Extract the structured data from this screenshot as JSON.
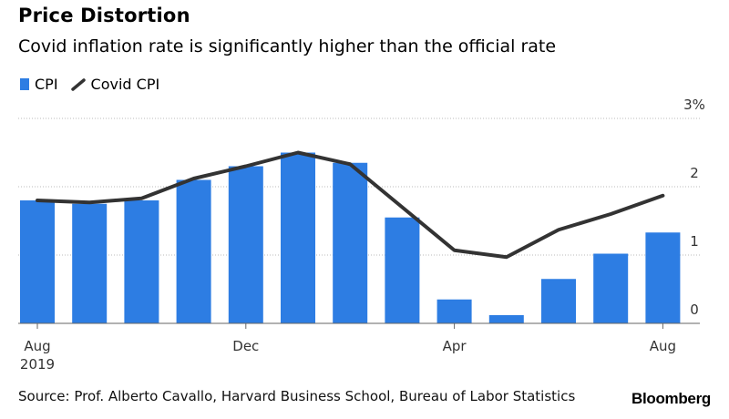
{
  "header": {
    "title": "Price Distortion",
    "subtitle": "Covid inflation rate is significantly higher than the official rate"
  },
  "legend": {
    "cpi_label": "CPI",
    "covid_label": "Covid CPI"
  },
  "footer": {
    "source": "Source: Prof. Alberto Cavallo, Harvard Business School, Bureau of Labor Statistics",
    "logo": "Bloomberg"
  },
  "colors": {
    "bar": "#2d7de3",
    "line": "#333333",
    "grid": "#bbbbbb"
  },
  "chart_data": {
    "type": "bar",
    "title": "Price Distortion",
    "subtitle": "Covid inflation rate is significantly higher than the official rate",
    "categories": [
      "Aug 2019",
      "Sep 2019",
      "Oct 2019",
      "Nov 2019",
      "Dec 2019",
      "Jan 2020",
      "Feb 2020",
      "Mar 2020",
      "Apr 2020",
      "May 2020",
      "Jun 2020",
      "Jul 2020",
      "Aug 2020"
    ],
    "series": [
      {
        "name": "CPI",
        "type": "bar",
        "values": [
          1.8,
          1.75,
          1.8,
          2.1,
          2.3,
          2.5,
          2.35,
          1.55,
          0.35,
          0.12,
          0.65,
          1.02,
          1.33
        ]
      },
      {
        "name": "Covid CPI",
        "type": "line",
        "values": [
          1.8,
          1.77,
          1.83,
          2.12,
          2.3,
          2.5,
          2.33,
          1.7,
          1.07,
          0.97,
          1.37,
          1.6,
          1.87
        ]
      }
    ],
    "ylim": [
      0,
      3
    ],
    "y_ticks": [
      {
        "value": 0,
        "label": "0"
      },
      {
        "value": 1,
        "label": "1"
      },
      {
        "value": 2,
        "label": "2"
      },
      {
        "value": 3,
        "label": "3%"
      }
    ],
    "x_ticks": [
      {
        "index": 0,
        "label": "Aug",
        "sublabel": "2019"
      },
      {
        "index": 4,
        "label": "Dec",
        "sublabel": ""
      },
      {
        "index": 8,
        "label": "Apr",
        "sublabel": ""
      },
      {
        "index": 12,
        "label": "Aug",
        "sublabel": ""
      }
    ],
    "y_axis_position": "right",
    "grid": true
  }
}
